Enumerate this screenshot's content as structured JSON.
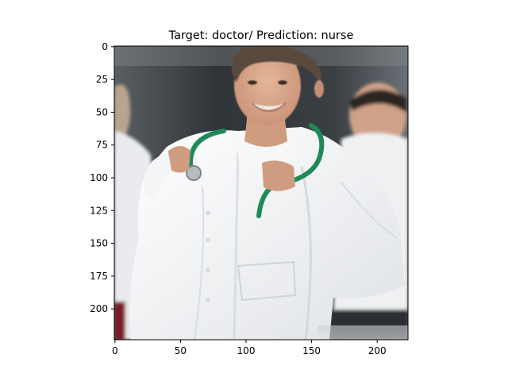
{
  "figure": {
    "title": "Target: doctor/ Prediction: nurse"
  },
  "chart_data": {
    "type": "image",
    "title": "Target: doctor/ Prediction: nurse",
    "image_shape": [
      224,
      224
    ],
    "xlim": [
      0,
      224
    ],
    "ylim": [
      224,
      0
    ],
    "xticks": [
      0,
      50,
      100,
      150,
      200
    ],
    "yticks": [
      0,
      25,
      50,
      75,
      100,
      125,
      150,
      175,
      200
    ],
    "xtick_labels": [
      "0",
      "50",
      "100",
      "150",
      "200"
    ],
    "ytick_labels": [
      "0",
      "25",
      "50",
      "75",
      "100",
      "125",
      "150",
      "175",
      "200"
    ],
    "xlabel": "",
    "ylabel": "",
    "grid": false,
    "image_content": "smiling man in white coat with green stethoscope, two colleagues in background"
  },
  "colors": {
    "coat": "#f2f3f5",
    "stethoscope": "#1f8a58",
    "hair": "#5a4a3c",
    "skin": "#d8a98c",
    "background_dark": "#2f3438",
    "trousers": "#2e3136"
  }
}
